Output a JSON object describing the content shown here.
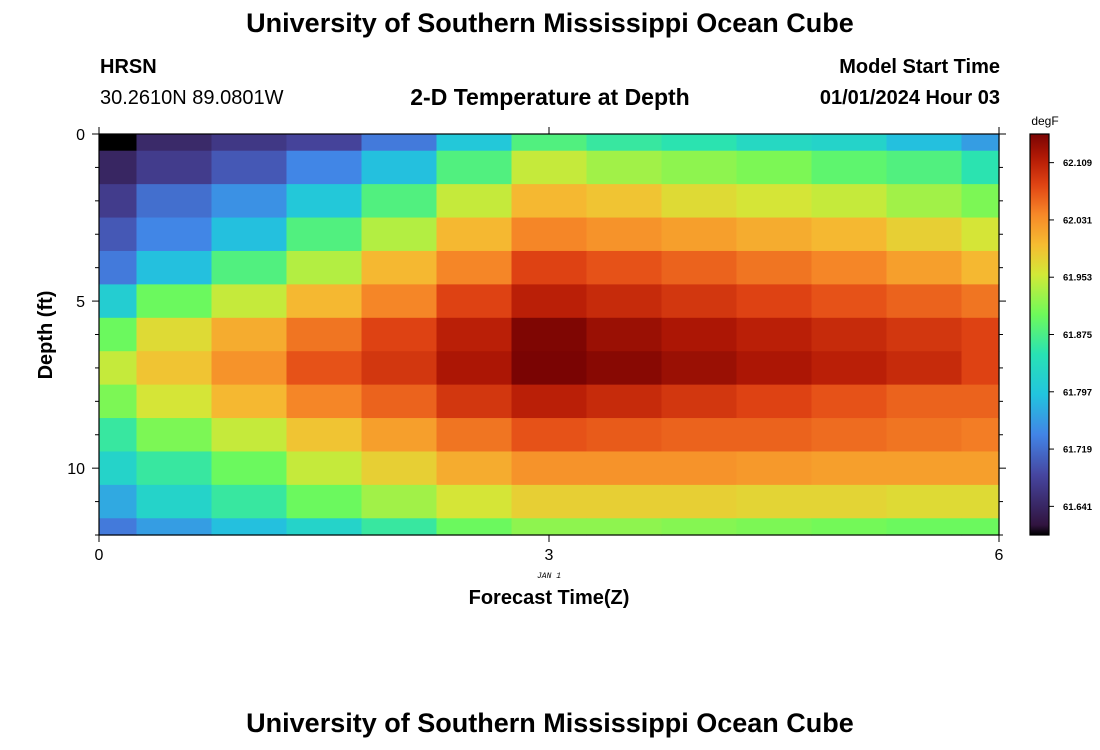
{
  "header": {
    "title": "University of Southern Mississippi Ocean Cube",
    "station_name": "HRSN",
    "station_coords": "30.2610N  89.0801W",
    "plot_title": "2-D Temperature at Depth",
    "model_start_label": "Model Start Time",
    "model_start_value": "01/01/2024 Hour 03"
  },
  "footer": {
    "title": "University of Southern Mississippi Ocean Cube"
  },
  "chart_data": {
    "type": "heatmap",
    "title": "2-D Temperature at Depth",
    "xlabel": "Forecast Time(Z)",
    "ylabel": "Depth (ft)",
    "x_sublabel": "JAN 1",
    "xlim": [
      0,
      6
    ],
    "ylim": [
      0,
      12
    ],
    "x_ticks": [
      0,
      3,
      6
    ],
    "x_tick_labels": [
      "0",
      "3",
      "6"
    ],
    "y_ticks": [
      0,
      5,
      10
    ],
    "y_tick_labels": [
      "0",
      "5",
      "10"
    ],
    "x_edges": [
      0,
      0.25,
      0.75,
      1.25,
      1.75,
      2.25,
      2.75,
      3.25,
      3.75,
      4.25,
      4.75,
      5.25,
      5.75,
      6
    ],
    "y_edges": [
      0,
      0.5,
      1.5,
      2.5,
      3.5,
      4.5,
      5.5,
      6.5,
      7.5,
      8.5,
      9.5,
      10.5,
      11.5,
      12
    ],
    "colorbar": {
      "unit": "degF",
      "min": 61.602,
      "max": 62.148,
      "ticks": [
        61.641,
        61.719,
        61.797,
        61.875,
        61.953,
        62.031,
        62.109
      ],
      "tick_labels": [
        "61.641",
        "61.719",
        "61.797",
        "61.875",
        "61.953",
        "62.031",
        "62.109"
      ]
    },
    "values": [
      [
        61.602,
        61.645,
        61.665,
        61.68,
        61.73,
        61.8,
        61.88,
        61.86,
        61.85,
        61.83,
        61.82,
        61.79,
        61.76
      ],
      [
        61.64,
        61.67,
        61.7,
        61.74,
        61.79,
        61.88,
        61.95,
        61.93,
        61.92,
        61.91,
        61.89,
        61.88,
        61.85
      ],
      [
        61.67,
        61.72,
        61.75,
        61.8,
        61.88,
        61.95,
        62.0,
        61.99,
        61.97,
        61.96,
        61.95,
        61.93,
        61.91
      ],
      [
        61.7,
        61.74,
        61.79,
        61.88,
        61.94,
        62.0,
        62.04,
        62.03,
        62.02,
        62.01,
        62.0,
        61.98,
        61.96
      ],
      [
        61.73,
        61.79,
        61.88,
        61.94,
        62.0,
        62.04,
        62.08,
        62.07,
        62.06,
        62.05,
        62.04,
        62.02,
        62.0
      ],
      [
        61.81,
        61.9,
        61.95,
        62.0,
        62.04,
        62.08,
        62.11,
        62.1,
        62.09,
        62.08,
        62.07,
        62.06,
        62.05
      ],
      [
        61.9,
        61.97,
        62.01,
        62.05,
        62.08,
        62.11,
        62.145,
        62.13,
        62.12,
        62.11,
        62.1,
        62.09,
        62.08
      ],
      [
        61.95,
        61.99,
        62.03,
        62.07,
        62.09,
        62.12,
        62.148,
        62.14,
        62.13,
        62.12,
        62.11,
        62.1,
        62.08
      ],
      [
        61.91,
        61.96,
        62.0,
        62.04,
        62.06,
        62.09,
        62.11,
        62.1,
        62.09,
        62.08,
        62.07,
        62.06,
        62.06
      ],
      [
        61.86,
        61.91,
        61.95,
        61.99,
        62.02,
        62.05,
        62.07,
        62.065,
        62.06,
        62.06,
        62.055,
        62.05,
        62.045
      ],
      [
        61.82,
        61.86,
        61.9,
        61.95,
        61.98,
        62.01,
        62.03,
        62.03,
        62.03,
        62.025,
        62.02,
        62.02,
        62.02
      ],
      [
        61.77,
        61.82,
        61.86,
        61.9,
        61.93,
        61.96,
        61.98,
        61.98,
        61.98,
        61.975,
        61.975,
        61.97,
        61.97
      ],
      [
        61.73,
        61.76,
        61.79,
        61.82,
        61.86,
        61.9,
        61.92,
        61.92,
        61.915,
        61.91,
        61.905,
        61.9,
        61.9
      ]
    ]
  }
}
